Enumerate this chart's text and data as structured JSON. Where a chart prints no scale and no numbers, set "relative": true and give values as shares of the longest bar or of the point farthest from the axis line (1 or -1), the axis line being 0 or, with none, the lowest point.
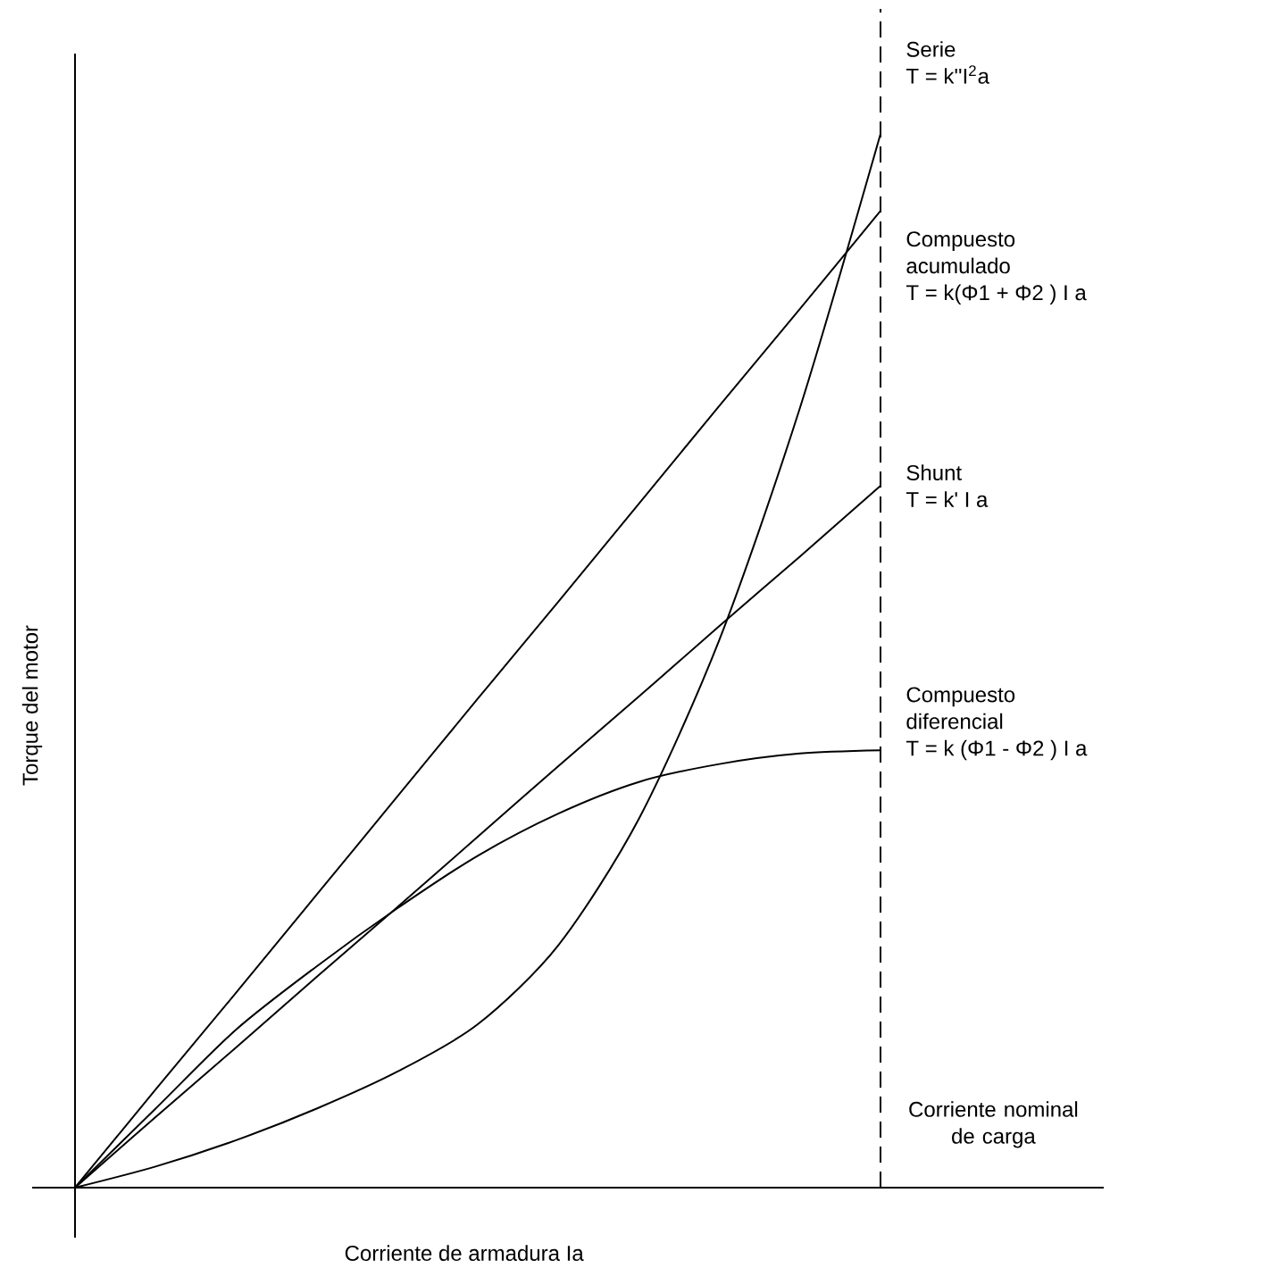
{
  "chart_data": {
    "type": "line",
    "relative": true,
    "xlabel": "Corriente de armadura Ia",
    "ylabel": "Torque del motor",
    "categories": [
      null,
      null,
      null,
      null,
      null,
      null,
      null,
      null,
      null,
      null,
      null
    ],
    "series": [
      {
        "name": "Serie",
        "color": "#000000",
        "values": [
          0,
          0.02,
          0.045,
          0.075,
          0.11,
          0.155,
          0.23,
          0.35,
          0.52,
          0.74,
          1.0
        ]
      },
      {
        "name": "Compuesto acumulado",
        "color": "#000000",
        "values": [
          0,
          0.093,
          0.185,
          0.278,
          0.371,
          0.464,
          0.556,
          0.649,
          0.742,
          0.834,
          0.927
        ]
      },
      {
        "name": "Shunt",
        "color": "#000000",
        "values": [
          0,
          0.067,
          0.133,
          0.2,
          0.266,
          0.333,
          0.4,
          0.466,
          0.533,
          0.599,
          0.666
        ]
      },
      {
        "name": "Compuesto diferencial",
        "color": "#000000",
        "values": [
          0,
          0.075,
          0.15,
          0.21,
          0.265,
          0.315,
          0.355,
          0.385,
          0.402,
          0.412,
          0.415
        ]
      }
    ],
    "annotations": [
      "T = k''I$^{2}$a",
      "T = k(Φ1 + Φ2 ) I a",
      "T = k'  I a",
      "T = k (Φ1 - Φ2 ) I a",
      "Corriente nominal de carga"
    ],
    "line_style": "solid",
    "marker": "none",
    "grid": false,
    "legend": false
  }
}
